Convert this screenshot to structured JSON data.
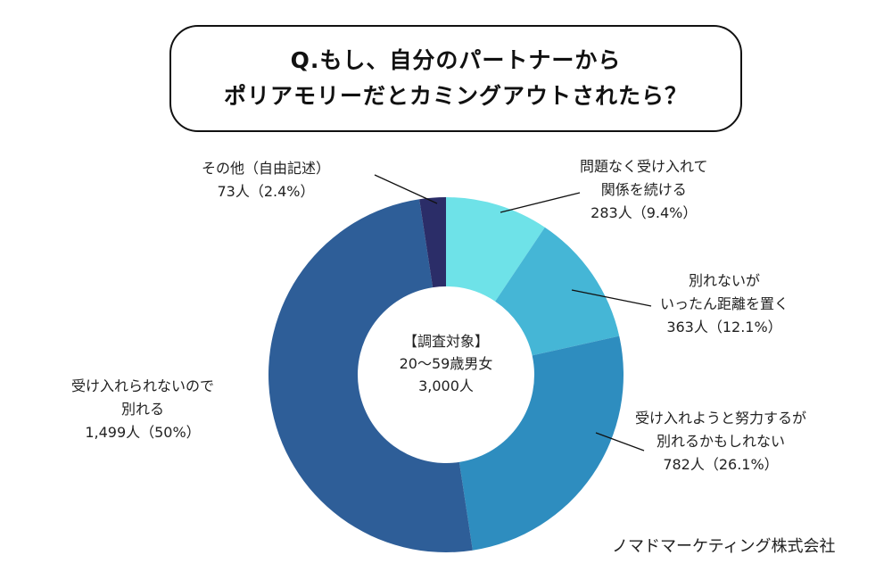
{
  "title": {
    "line1": "Q.もし、自分のパートナーから",
    "line2": "ポリアモリーだとカミングアウトされたら？"
  },
  "center_label": {
    "line1": "【調査対象】",
    "line2": "20〜59歳男女",
    "line3": "3,000人"
  },
  "credit": "ノマドマーケティング株式会社",
  "chart_data": {
    "type": "pie",
    "donut": true,
    "title": "Q.もし、自分のパートナーからポリアモリーだとカミングアウトされたら？",
    "start": "top",
    "direction": "clockwise",
    "slices": [
      {
        "label_lines": [
          "問題なく受け入れて",
          "関係を続ける"
        ],
        "value_text": "283人（9.4%）",
        "count": 283,
        "percent": 9.4,
        "color": "#6ee2e8"
      },
      {
        "label_lines": [
          "別れないが",
          "いったん距離を置く"
        ],
        "value_text": "363人（12.1%）",
        "count": 363,
        "percent": 12.1,
        "color": "#45b6d6"
      },
      {
        "label_lines": [
          "受け入れようと努力するが",
          "別れるかもしれない"
        ],
        "value_text": "782人（26.1%）",
        "count": 782,
        "percent": 26.1,
        "color": "#2e8dbf"
      },
      {
        "label_lines": [
          "受け入れられないので",
          "別れる"
        ],
        "value_text": "1,499人（50%）",
        "count": 1499,
        "percent": 50,
        "color": "#2e5e98"
      },
      {
        "label_lines": [
          "その他（自由記述）"
        ],
        "value_text": "73人（2.4%）",
        "count": 73,
        "percent": 2.4,
        "color": "#2b2d68"
      }
    ]
  }
}
